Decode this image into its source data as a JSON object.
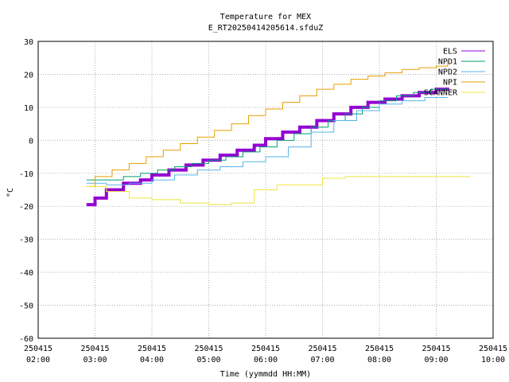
{
  "chart_data": {
    "type": "line",
    "title": "Temperature for MEX",
    "subtitle": "E_RT20250414205614.sfduZ",
    "xlabel": "Time (yymmdd HH:MM)",
    "ylabel": "°C",
    "ylim": [
      -60,
      30
    ],
    "yticks": [
      -60,
      -50,
      -40,
      -30,
      -20,
      -10,
      0,
      10,
      20,
      30
    ],
    "xlim": [
      2.0,
      10.0
    ],
    "xticks": [
      {
        "x": 2,
        "date": "250415",
        "time": "02:00"
      },
      {
        "x": 3,
        "date": "250415",
        "time": "03:00"
      },
      {
        "x": 4,
        "date": "250415",
        "time": "04:00"
      },
      {
        "x": 5,
        "date": "250415",
        "time": "05:00"
      },
      {
        "x": 6,
        "date": "250415",
        "time": "06:00"
      },
      {
        "x": 7,
        "date": "250415",
        "time": "07:00"
      },
      {
        "x": 8,
        "date": "250415",
        "time": "08:00"
      },
      {
        "x": 9,
        "date": "250415",
        "time": "09:00"
      },
      {
        "x": 10,
        "date": "250415",
        "time": "10:00"
      }
    ],
    "grid": true,
    "legend_position": "top-right",
    "series": [
      {
        "name": "ELS",
        "color": "#9400d3",
        "width": 4,
        "x": [
          2.85,
          3.0,
          3.2,
          3.5,
          3.8,
          4.0,
          4.3,
          4.6,
          4.9,
          5.2,
          5.5,
          5.8,
          6.0,
          6.3,
          6.6,
          6.9,
          7.2,
          7.5,
          7.8,
          8.1,
          8.4,
          8.7,
          9.0,
          9.2
        ],
        "values": [
          -19.5,
          -17.5,
          -15,
          -13,
          -12,
          -10.5,
          -9,
          -7.5,
          -6,
          -4.5,
          -3,
          -1.5,
          0.5,
          2.5,
          4,
          6,
          8,
          10,
          11.5,
          12.5,
          13.5,
          14.5,
          15.5,
          16
        ]
      },
      {
        "name": "NPD1",
        "color": "#009e73",
        "width": 1,
        "x": [
          2.85,
          3.2,
          3.5,
          3.8,
          4.1,
          4.4,
          4.7,
          5.0,
          5.3,
          5.6,
          5.9,
          6.2,
          6.5,
          6.8,
          7.1,
          7.4,
          7.7,
          8.0,
          8.3,
          8.6,
          8.9,
          9.2
        ],
        "values": [
          -12,
          -12,
          -11,
          -10,
          -9,
          -8,
          -7,
          -6,
          -5,
          -3.5,
          -2,
          0,
          2,
          4,
          6,
          8,
          10,
          12,
          13.5,
          14.5,
          15.5,
          16
        ]
      },
      {
        "name": "NPD2",
        "color": "#56b4e9",
        "width": 1,
        "x": [
          2.85,
          3.2,
          3.6,
          4.0,
          4.4,
          4.8,
          5.2,
          5.6,
          6.0,
          6.4,
          6.8,
          7.2,
          7.6,
          8.0,
          8.4,
          8.8,
          9.2
        ],
        "values": [
          -13,
          -13.5,
          -13,
          -12,
          -10.5,
          -9,
          -8,
          -6.5,
          -5,
          -2,
          2.5,
          6,
          9,
          11,
          12,
          13,
          13
        ]
      },
      {
        "name": "NPI",
        "color": "#e69f00",
        "width": 1,
        "x": [
          2.85,
          3.0,
          3.3,
          3.6,
          3.9,
          4.2,
          4.5,
          4.8,
          5.1,
          5.4,
          5.7,
          6.0,
          6.3,
          6.6,
          6.9,
          7.2,
          7.5,
          7.8,
          8.1,
          8.4,
          8.7,
          9.0,
          9.2
        ],
        "values": [
          -14,
          -11,
          -9,
          -7,
          -5,
          -3,
          -1,
          1,
          3,
          5,
          7.5,
          9.5,
          11.5,
          13.5,
          15.5,
          17,
          18.5,
          19.5,
          20.5,
          21.5,
          22,
          22.5,
          24
        ]
      },
      {
        "name": "SCANNER",
        "color": "#f0e442",
        "width": 1,
        "x": [
          2.85,
          3.2,
          3.6,
          4.0,
          4.5,
          5.0,
          5.4,
          5.8,
          6.2,
          6.6,
          7.0,
          7.4,
          7.8,
          8.2,
          8.6,
          9.0,
          9.2,
          9.6
        ],
        "values": [
          -14,
          -15.5,
          -17.5,
          -18,
          -19,
          -19.5,
          -19,
          -15,
          -13.5,
          -13.5,
          -11.5,
          -11,
          -11,
          -11,
          -11,
          -11,
          -11,
          -11
        ]
      }
    ]
  }
}
